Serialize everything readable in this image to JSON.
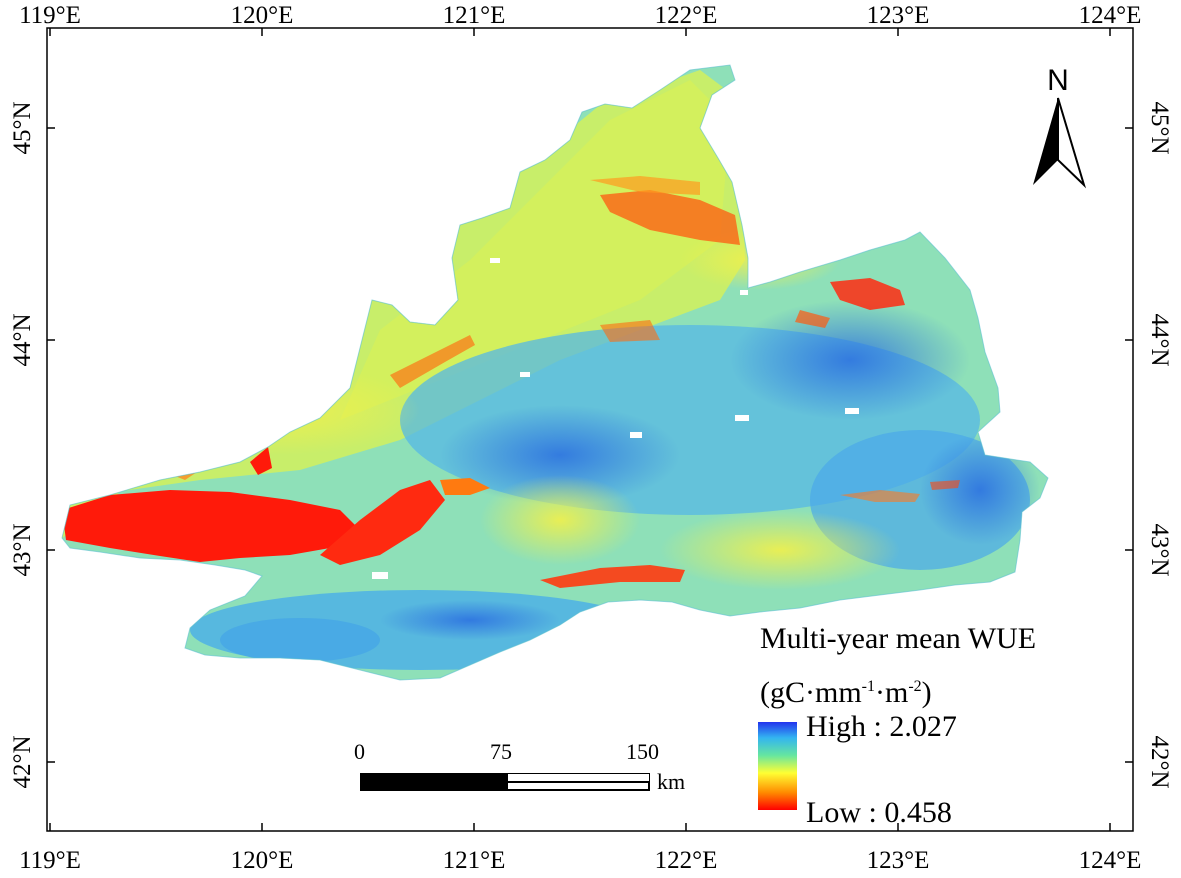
{
  "map": {
    "longitude_labels": [
      "119°E",
      "120°E",
      "121°E",
      "122°E",
      "123°E",
      "124°E"
    ],
    "latitude_labels": [
      "45°N",
      "44°N",
      "43°N",
      "42°N"
    ],
    "north_arrow_label": "N"
  },
  "legend": {
    "title_line1": "Multi-year mean WUE",
    "unit_prefix": "(gC·mm",
    "unit_exp1": "-1",
    "unit_mid": "·m",
    "unit_exp2": "-2",
    "unit_suffix": ")",
    "high_label": "High : 2.027",
    "low_label": "Low : 0.458",
    "colors": [
      "#ff0000",
      "#ff8c00",
      "#ffff33",
      "#66e6a0",
      "#33b5f0",
      "#2233ee"
    ]
  },
  "scale_bar": {
    "tick_labels": [
      "0",
      "75",
      "150"
    ],
    "unit": "km"
  }
}
